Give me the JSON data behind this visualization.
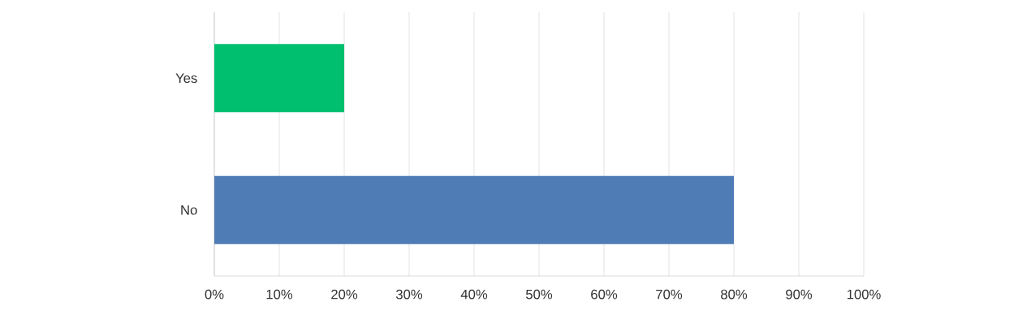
{
  "chart_data": {
    "type": "bar",
    "orientation": "horizontal",
    "categories": [
      "Yes",
      "No"
    ],
    "values": [
      20,
      80
    ],
    "colors": [
      "#00bf6f",
      "#507cb6"
    ],
    "xlim": [
      0,
      100
    ],
    "xticks": [
      {
        "value": 0,
        "label": "0%"
      },
      {
        "value": 10,
        "label": "10%"
      },
      {
        "value": 20,
        "label": "20%"
      },
      {
        "value": 30,
        "label": "30%"
      },
      {
        "value": 40,
        "label": "40%"
      },
      {
        "value": 50,
        "label": "50%"
      },
      {
        "value": 60,
        "label": "60%"
      },
      {
        "value": 70,
        "label": "70%"
      },
      {
        "value": 80,
        "label": "80%"
      },
      {
        "value": 90,
        "label": "90%"
      },
      {
        "value": 100,
        "label": "100%"
      }
    ],
    "grid": "x"
  }
}
